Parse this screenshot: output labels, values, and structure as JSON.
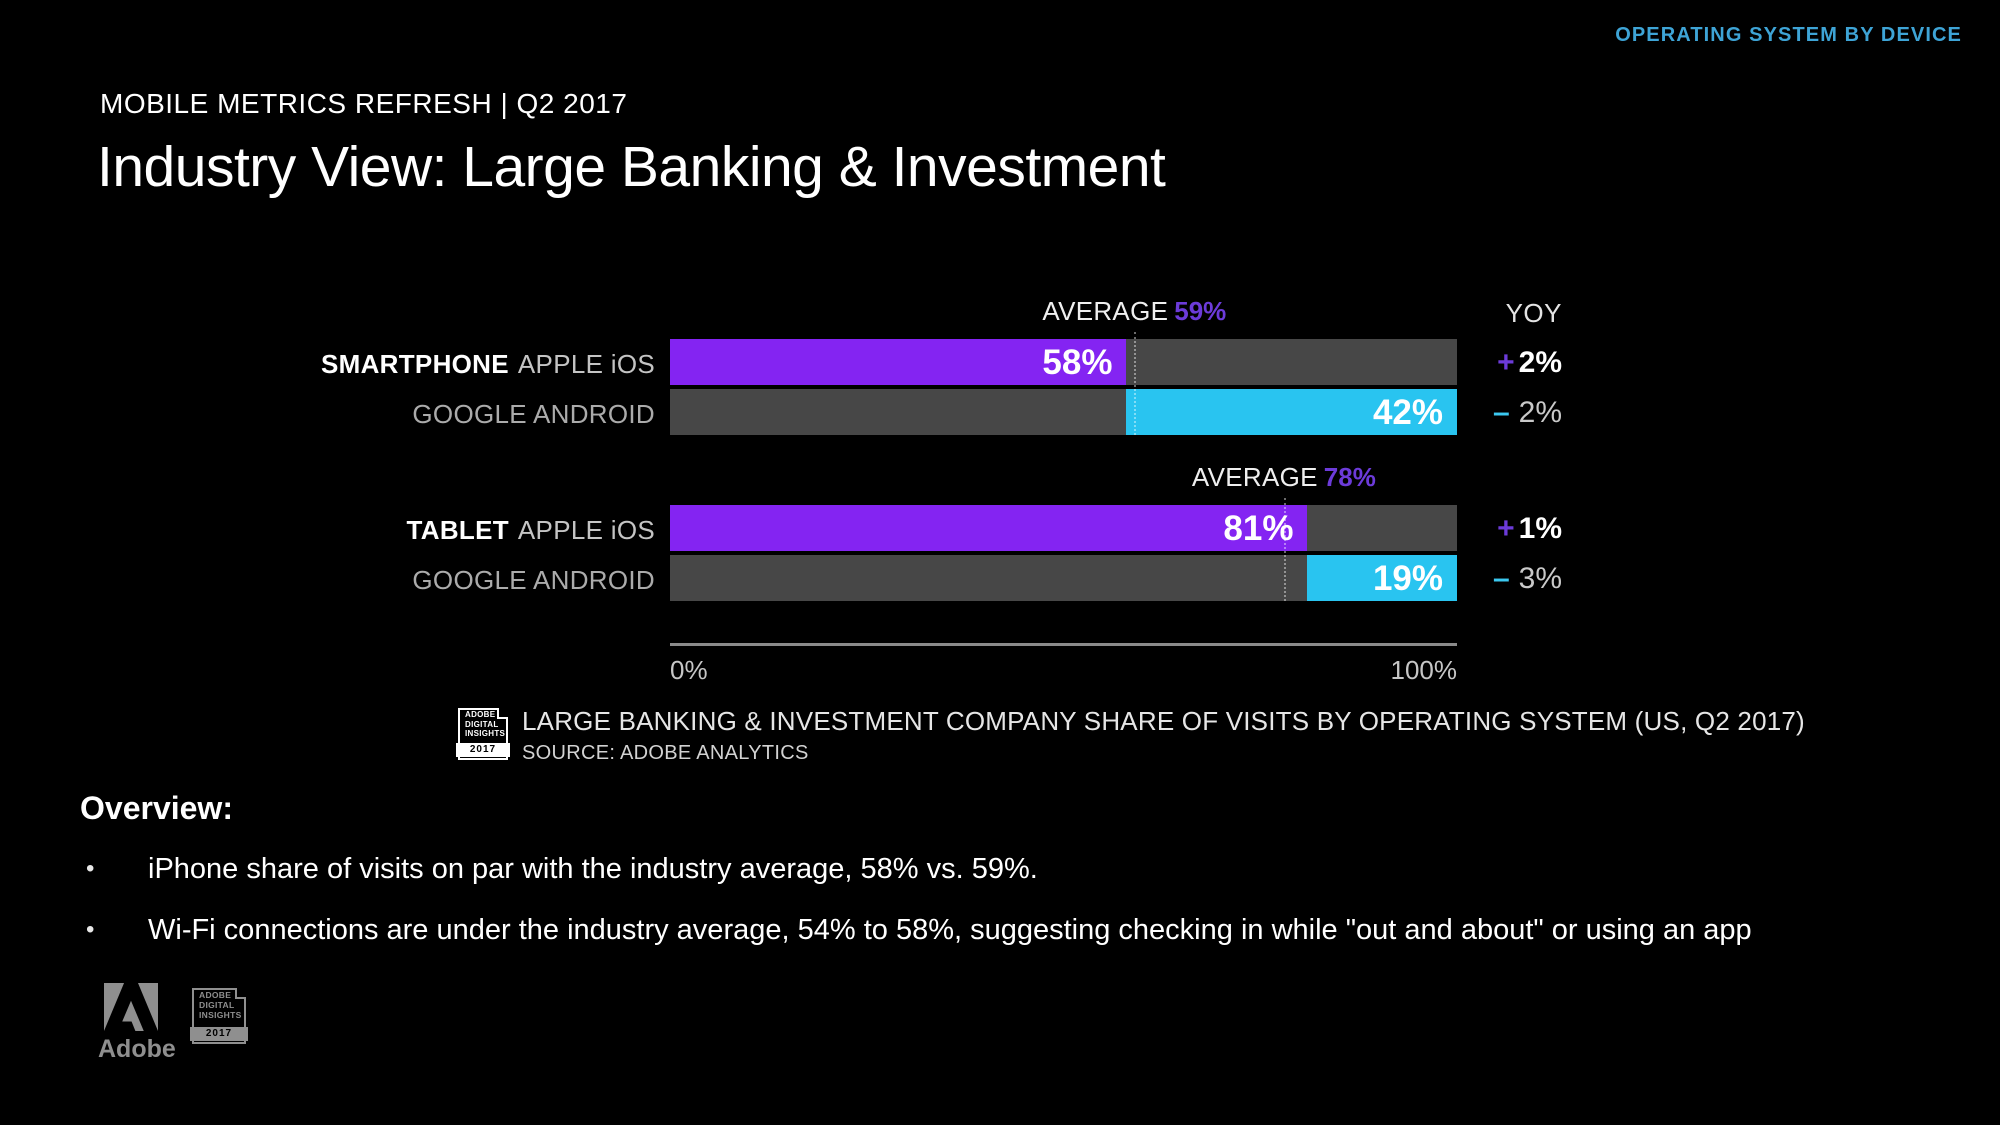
{
  "slide": {
    "kicker": "OPERATING SYSTEM BY DEVICE",
    "eyebrow": "MOBILE METRICS REFRESH | Q2 2017",
    "title": "Industry View: Large Banking & Investment"
  },
  "colors": {
    "bg": "#000000",
    "accent_blue": "#3EA4D6",
    "ios_purple": "#8424F2",
    "android_cyan": "#29C4F0",
    "track_gray": "#474747",
    "average_purple": "#6C3BD9",
    "yoy_minus_cyan": "#3BC8F0",
    "footer_gray": "#8F8F8F"
  },
  "chart_data": {
    "type": "bar",
    "title": "LARGE BANKING & INVESTMENT COMPANY SHARE OF VISITS BY OPERATING SYSTEM (US, Q2 2017)",
    "source": "SOURCE: ADOBE ANALYTICS",
    "yoy_header": "YOY",
    "xlim": [
      0,
      100
    ],
    "axis_ticks": [
      "0%",
      "100%"
    ],
    "categories": [
      "SMARTPHONE APPLE iOS",
      "SMARTPHONE GOOGLE ANDROID",
      "TABLET APPLE iOS",
      "TABLET GOOGLE ANDROID"
    ],
    "values": [
      58,
      42,
      81,
      19
    ],
    "yoy": [
      "+2%",
      "–2%",
      "+1%",
      "–3%"
    ],
    "averages": [
      59,
      78
    ],
    "groups": [
      {
        "device": "SMARTPHONE",
        "average_label": "AVERAGE",
        "average_pct": "59%",
        "average_value": 59,
        "rows": [
          {
            "os": "APPLE iOS",
            "value": 58,
            "pct": "58%",
            "yoy_sign": "+",
            "yoy_value": "2%"
          },
          {
            "os": "GOOGLE ANDROID",
            "value": 42,
            "pct": "42%",
            "yoy_sign": "–",
            "yoy_value": "2%"
          }
        ]
      },
      {
        "device": "TABLET",
        "average_label": "AVERAGE",
        "average_pct": "78%",
        "average_value": 78,
        "rows": [
          {
            "os": "APPLE iOS",
            "value": 81,
            "pct": "81%",
            "yoy_sign": "+",
            "yoy_value": "1%"
          },
          {
            "os": "GOOGLE ANDROID",
            "value": 19,
            "pct": "19%",
            "yoy_sign": "–",
            "yoy_value": "3%"
          }
        ]
      }
    ]
  },
  "adi_badge": {
    "line1": "ADOBE",
    "line2": "DIGITAL",
    "line3": "INSIGHTS",
    "year": "2017"
  },
  "overview": {
    "heading": "Overview:",
    "bullet_char": "•",
    "bullets": [
      "iPhone share of visits on par with the industry average, 58% vs. 59%.",
      "Wi-Fi connections are under the industry average, 54% to 58%, suggesting checking in while \"out and about\" or using an app"
    ]
  },
  "footer": {
    "adobe_wordmark": "Adobe"
  }
}
